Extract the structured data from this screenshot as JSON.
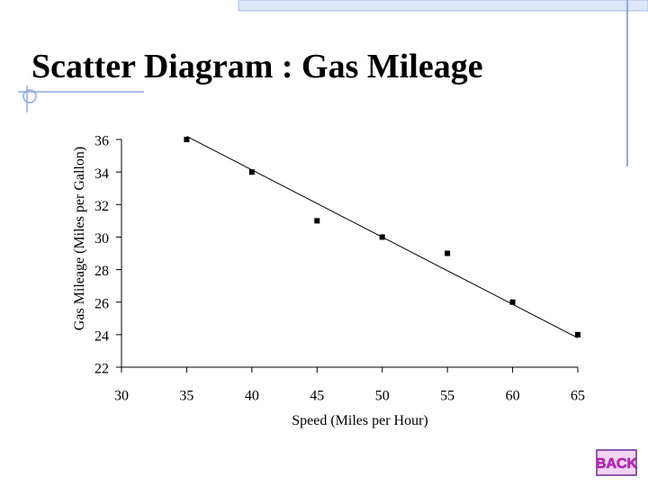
{
  "chart_data": {
    "type": "scatter",
    "title": "Scatter Diagram : Gas Mileage",
    "x_label": "Speed (Miles per Hour)",
    "y_label": "Gas Mileage (Miles per Gallon)",
    "x": [
      35,
      40,
      45,
      50,
      55,
      60,
      65
    ],
    "values": [
      36,
      34,
      31,
      30,
      29,
      26,
      24
    ],
    "color": "#000000",
    "trend_line": {
      "x": [
        35,
        65
      ],
      "values": [
        36.2,
        23.8
      ],
      "color": "#000000"
    },
    "xlim": [
      30,
      65
    ],
    "xticks": [
      30,
      35,
      40,
      45,
      50,
      55,
      60,
      65
    ],
    "ylim": [
      22,
      36
    ],
    "yticks": [
      22,
      24,
      26,
      28,
      30,
      32,
      34,
      36
    ]
  },
  "back_button": "BACK"
}
